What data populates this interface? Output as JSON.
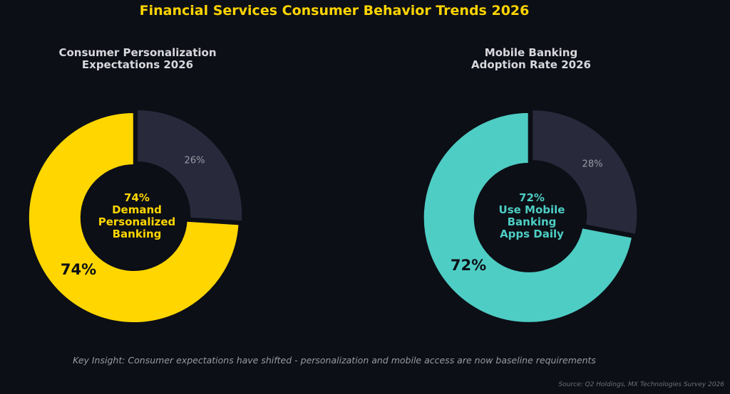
{
  "title": "Financial Services Consumer Behavior Trends 2026",
  "colors": {
    "background": "#0c0f16",
    "title": "#ffd400",
    "remainder": "#282a3c",
    "muted_text": "#9a9aa4"
  },
  "chart_data": [
    {
      "type": "pie",
      "style": "donut",
      "title": "Consumer Personalization\nExpectations 2026",
      "slices": [
        {
          "label": "74%",
          "value": 74,
          "color": "#ffd600"
        },
        {
          "label": "26%",
          "value": 26,
          "color": "#282a3c"
        }
      ],
      "center_label": [
        "74%",
        "Demand",
        "Personalized",
        "Banking"
      ],
      "center_color": "#ffd600"
    },
    {
      "type": "pie",
      "style": "donut",
      "title": "Mobile Banking\nAdoption Rate 2026",
      "slices": [
        {
          "label": "72%",
          "value": 72,
          "color": "#4ecdc4"
        },
        {
          "label": "28%",
          "value": 28,
          "color": "#282a3c"
        }
      ],
      "center_label": [
        "72%",
        "Use Mobile",
        "Banking",
        "Apps Daily"
      ],
      "center_color": "#4ecdc4"
    }
  ],
  "insight": "Key Insight: Consumer expectations have shifted - personalization and mobile access are now baseline requirements",
  "source": "Source: Q2 Holdings, MX Technologies Survey 2026"
}
